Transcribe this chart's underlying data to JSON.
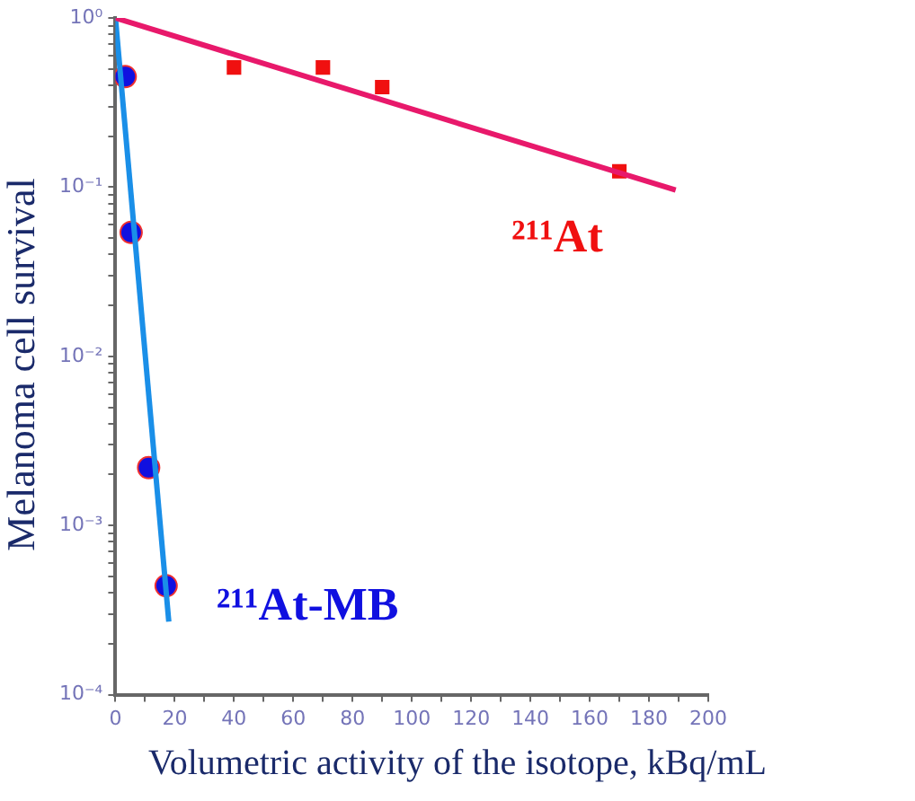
{
  "chart_data": {
    "type": "scatter",
    "xlabel": "Volumetric activity of the isotope, kBq/mL",
    "ylabel": "Melanoma cell survival",
    "log": "y",
    "grid": false,
    "legend": false,
    "xlim": [
      0,
      200
    ],
    "ylim": [
      0.0001,
      1
    ],
    "xticks": [
      0,
      {
        "value": 10,
        "label": null
      },
      20,
      {
        "value": 30,
        "label": null
      },
      40,
      {
        "value": 50,
        "label": null
      },
      60,
      {
        "value": 70,
        "label": null
      },
      80,
      {
        "value": 90,
        "label": null
      },
      100,
      {
        "value": 110,
        "label": null
      },
      120,
      {
        "value": 130,
        "label": null
      },
      140,
      {
        "value": 150,
        "label": null
      },
      160,
      {
        "value": 170,
        "label": null
      },
      180,
      {
        "value": 190,
        "label": null
      },
      200
    ],
    "yticks": [
      {
        "value": 0.0001,
        "label": "10⁻⁴"
      },
      {
        "value": 0.0002,
        "label": null
      },
      {
        "value": 0.0003,
        "label": null
      },
      {
        "value": 0.0004,
        "label": null
      },
      {
        "value": 0.0005,
        "label": null
      },
      {
        "value": 0.0006,
        "label": null
      },
      {
        "value": 0.0007,
        "label": null
      },
      {
        "value": 0.0008,
        "label": null
      },
      {
        "value": 0.0009,
        "label": null
      },
      {
        "value": 0.001,
        "label": "10⁻³"
      },
      {
        "value": 0.002,
        "label": null
      },
      {
        "value": 0.003,
        "label": null
      },
      {
        "value": 0.004,
        "label": null
      },
      {
        "value": 0.005,
        "label": null
      },
      {
        "value": 0.006,
        "label": null
      },
      {
        "value": 0.007,
        "label": null
      },
      {
        "value": 0.008,
        "label": null
      },
      {
        "value": 0.009,
        "label": null
      },
      {
        "value": 0.01,
        "label": "10⁻²"
      },
      {
        "value": 0.02,
        "label": null
      },
      {
        "value": 0.03,
        "label": null
      },
      {
        "value": 0.04,
        "label": null
      },
      {
        "value": 0.05,
        "label": null
      },
      {
        "value": 0.06,
        "label": null
      },
      {
        "value": 0.07,
        "label": null
      },
      {
        "value": 0.08,
        "label": null
      },
      {
        "value": 0.09,
        "label": null
      },
      {
        "value": 0.1,
        "label": "10⁻¹"
      },
      {
        "value": 0.2,
        "label": null
      },
      {
        "value": 0.3,
        "label": null
      },
      {
        "value": 0.4,
        "label": null
      },
      {
        "value": 0.5,
        "label": null
      },
      {
        "value": 0.6,
        "label": null
      },
      {
        "value": 0.7,
        "label": null
      },
      {
        "value": 0.8,
        "label": null
      },
      {
        "value": 0.9,
        "label": null
      },
      {
        "value": 1,
        "label": "10⁰"
      }
    ],
    "series": [
      {
        "type": "line",
        "color": "#e8196b",
        "marker": "none",
        "line_style": "solid",
        "x": [
          0,
          189
        ],
        "values": [
          1,
          0.096
        ]
      },
      {
        "type": "line",
        "color": "#1a8fe8",
        "marker": "none",
        "line_style": "solid",
        "x": [
          0,
          18
        ],
        "values": [
          1,
          0.00027
        ]
      },
      {
        "name": "²¹¹At",
        "color": "#f01010",
        "marker": "square",
        "x": [
          40,
          70,
          90,
          170
        ],
        "values": [
          0.51,
          0.51,
          0.39,
          0.124
        ]
      },
      {
        "name": "²¹¹At-MB",
        "color": "#1010e0",
        "marker": "circle",
        "x": [
          3.3,
          5.3,
          11.2,
          17.1
        ],
        "values": [
          0.45,
          0.054,
          0.0022,
          0.00044
        ]
      }
    ]
  }
}
